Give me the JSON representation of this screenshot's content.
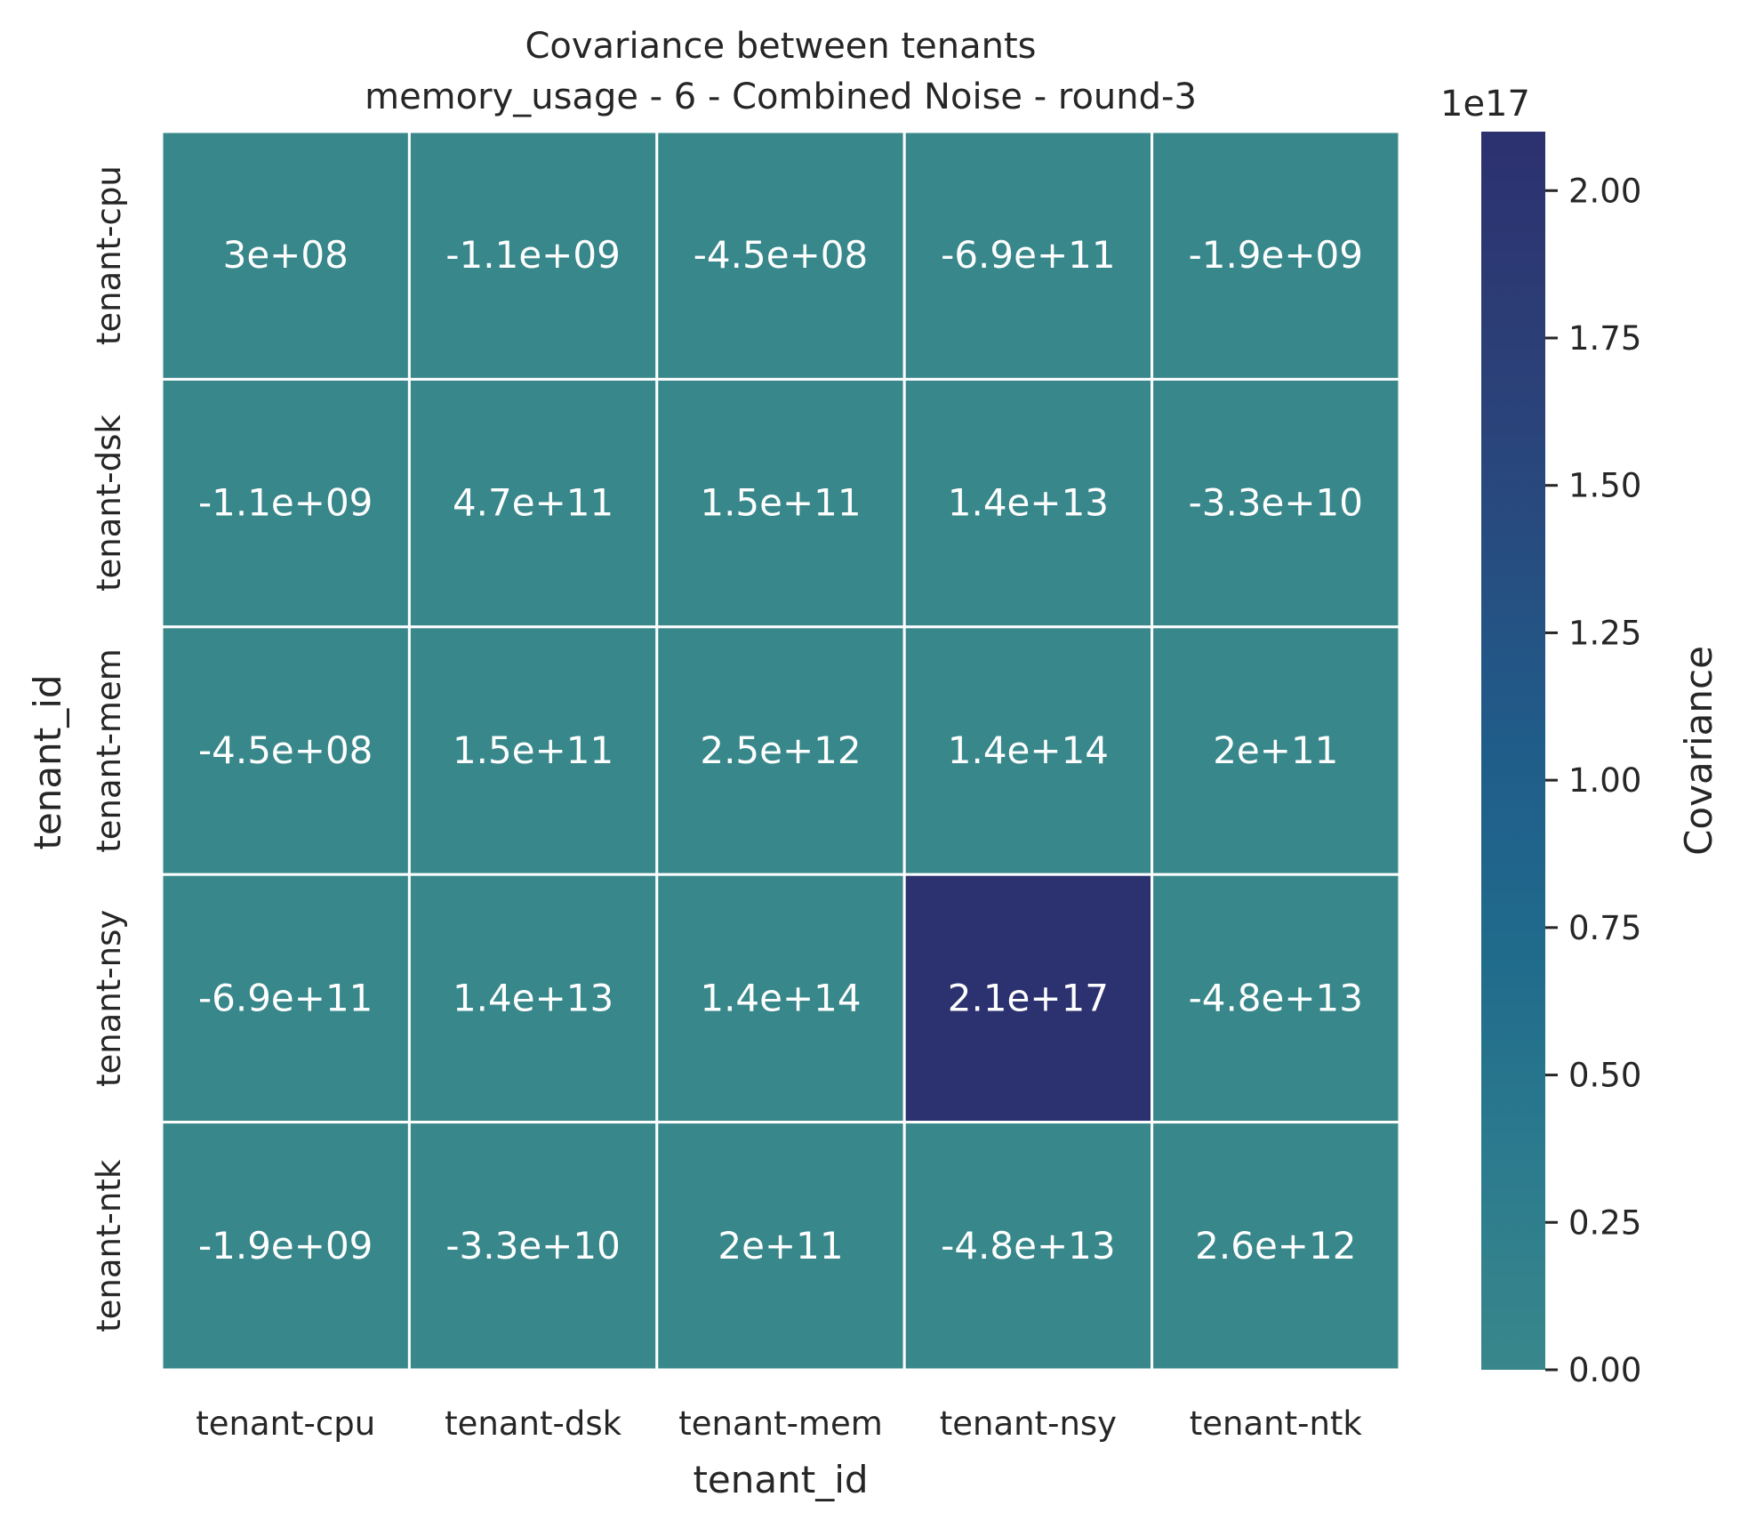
{
  "chart_data": {
    "type": "heatmap",
    "title": "Covariance between tenants",
    "subtitle": "memory_usage - 6 - Combined Noise - round-3",
    "xlabel": "tenant_id",
    "ylabel": "tenant_id",
    "x_categories": [
      "tenant-cpu",
      "tenant-dsk",
      "tenant-mem",
      "tenant-nsy",
      "tenant-ntk"
    ],
    "y_categories": [
      "tenant-cpu",
      "tenant-dsk",
      "tenant-mem",
      "tenant-nsy",
      "tenant-ntk"
    ],
    "values": [
      [
        300000000.0,
        -1100000000.0,
        -450000000.0,
        -690000000000.0,
        -1900000000.0
      ],
      [
        -1100000000.0,
        470000000000.0,
        150000000000.0,
        14000000000000.0,
        -33000000000.0
      ],
      [
        -450000000.0,
        150000000000.0,
        2500000000000.0,
        140000000000000.0,
        200000000000.0
      ],
      [
        -690000000000.0,
        14000000000000.0,
        140000000000000.0,
        2.1e+17,
        -48000000000000.0
      ],
      [
        -1900000000.0,
        -33000000000.0,
        200000000000.0,
        -48000000000000.0,
        2600000000000.0
      ]
    ],
    "annotations": [
      [
        "3e+08",
        "-1.1e+09",
        "-4.5e+08",
        "-6.9e+11",
        "-1.9e+09"
      ],
      [
        "-1.1e+09",
        "4.7e+11",
        "1.5e+11",
        "1.4e+13",
        "-3.3e+10"
      ],
      [
        "-4.5e+08",
        "1.5e+11",
        "2.5e+12",
        "1.4e+14",
        "2e+11"
      ],
      [
        "-6.9e+11",
        "1.4e+13",
        "1.4e+14",
        "2.1e+17",
        "-4.8e+13"
      ],
      [
        "-1.9e+09",
        "-3.3e+10",
        "2e+11",
        "-4.8e+13",
        "2.6e+12"
      ]
    ],
    "colorbar": {
      "label": "Covariance",
      "offset_text": "1e17",
      "scale": 1e+17,
      "range": [
        0,
        2.1
      ],
      "ticks": [
        "0.00",
        "0.25",
        "0.50",
        "0.75",
        "1.00",
        "1.25",
        "1.50",
        "1.75",
        "2.00"
      ],
      "tick_values": [
        0,
        0.25,
        0.5,
        0.75,
        1.0,
        1.25,
        1.5,
        1.75,
        2.0
      ],
      "colors": [
        "#38878b",
        "#2c7b8e",
        "#206b8c",
        "#205d8a",
        "#274c80",
        "#2c3e76",
        "#2c316f"
      ]
    },
    "grid": false,
    "legend": "colorbar-right"
  }
}
